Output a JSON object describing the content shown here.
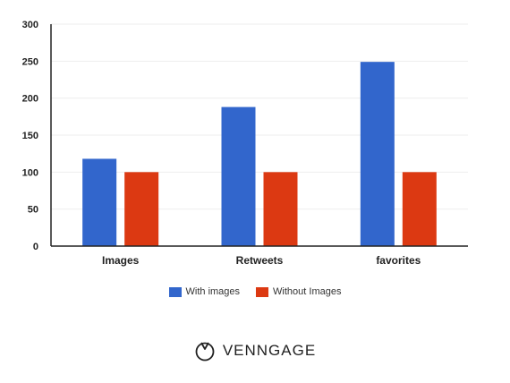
{
  "chart_data": {
    "type": "bar",
    "categories": [
      "Images",
      "Retweets",
      "favorites"
    ],
    "series": [
      {
        "name": "With images",
        "values": [
          118,
          188,
          249
        ],
        "color": "#3266cc"
      },
      {
        "name": "Without Images",
        "values": [
          100,
          100,
          100
        ],
        "color": "#dc3912"
      }
    ],
    "yticks": [
      "0",
      "50",
      "100",
      "150",
      "200",
      "250",
      "300"
    ],
    "ylim": [
      0,
      300
    ],
    "grid": true,
    "legend_position": "bottom"
  },
  "brand": {
    "name": "VENNGAGE",
    "icon": "venngage-logo-icon"
  }
}
